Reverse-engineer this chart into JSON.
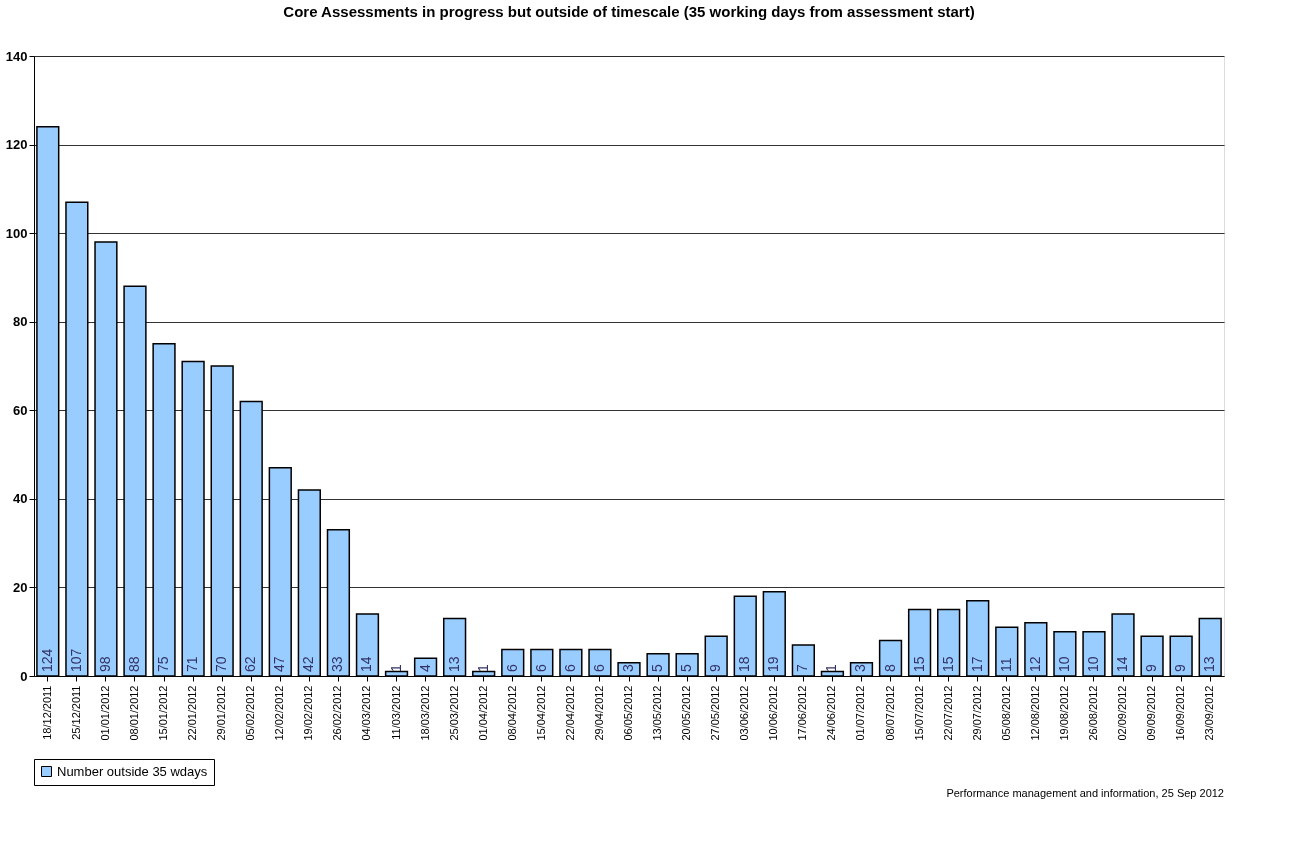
{
  "chart_data": {
    "type": "bar",
    "title": "Core Assessments in progress but outside of timescale (35 working days from assessment start)",
    "categories": [
      "18/12/2011",
      "25/12/2011",
      "01/01/2012",
      "08/01/2012",
      "15/01/2012",
      "22/01/2012",
      "29/01/2012",
      "05/02/2012",
      "12/02/2012",
      "19/02/2012",
      "26/02/2012",
      "04/03/2012",
      "11/03/2012",
      "18/03/2012",
      "25/03/2012",
      "01/04/2012",
      "08/04/2012",
      "15/04/2012",
      "22/04/2012",
      "29/04/2012",
      "06/05/2012",
      "13/05/2012",
      "20/05/2012",
      "27/05/2012",
      "03/06/2012",
      "10/06/2012",
      "17/06/2012",
      "24/06/2012",
      "01/07/2012",
      "08/07/2012",
      "15/07/2012",
      "22/07/2012",
      "29/07/2012",
      "05/08/2012",
      "12/08/2012",
      "19/08/2012",
      "26/08/2012",
      "02/09/2012",
      "09/09/2012",
      "16/09/2012",
      "23/09/2012"
    ],
    "series": [
      {
        "name": "Number outside 35 wdays",
        "color": "#99ccff",
        "values": [
          124,
          107,
          98,
          88,
          75,
          71,
          70,
          62,
          47,
          42,
          33,
          14,
          1,
          4,
          13,
          1,
          6,
          6,
          6,
          6,
          3,
          5,
          5,
          9,
          18,
          19,
          7,
          1,
          3,
          8,
          15,
          15,
          17,
          11,
          12,
          10,
          10,
          14,
          9,
          9,
          13
        ]
      }
    ],
    "ylim": [
      0,
      140
    ],
    "yticks": [
      0,
      20,
      40,
      60,
      80,
      100,
      120,
      140
    ],
    "grid": "y",
    "legend": "bottom left",
    "data_labels": true,
    "annotations": [
      "Performance management and information, 25 Sep 2012"
    ]
  }
}
